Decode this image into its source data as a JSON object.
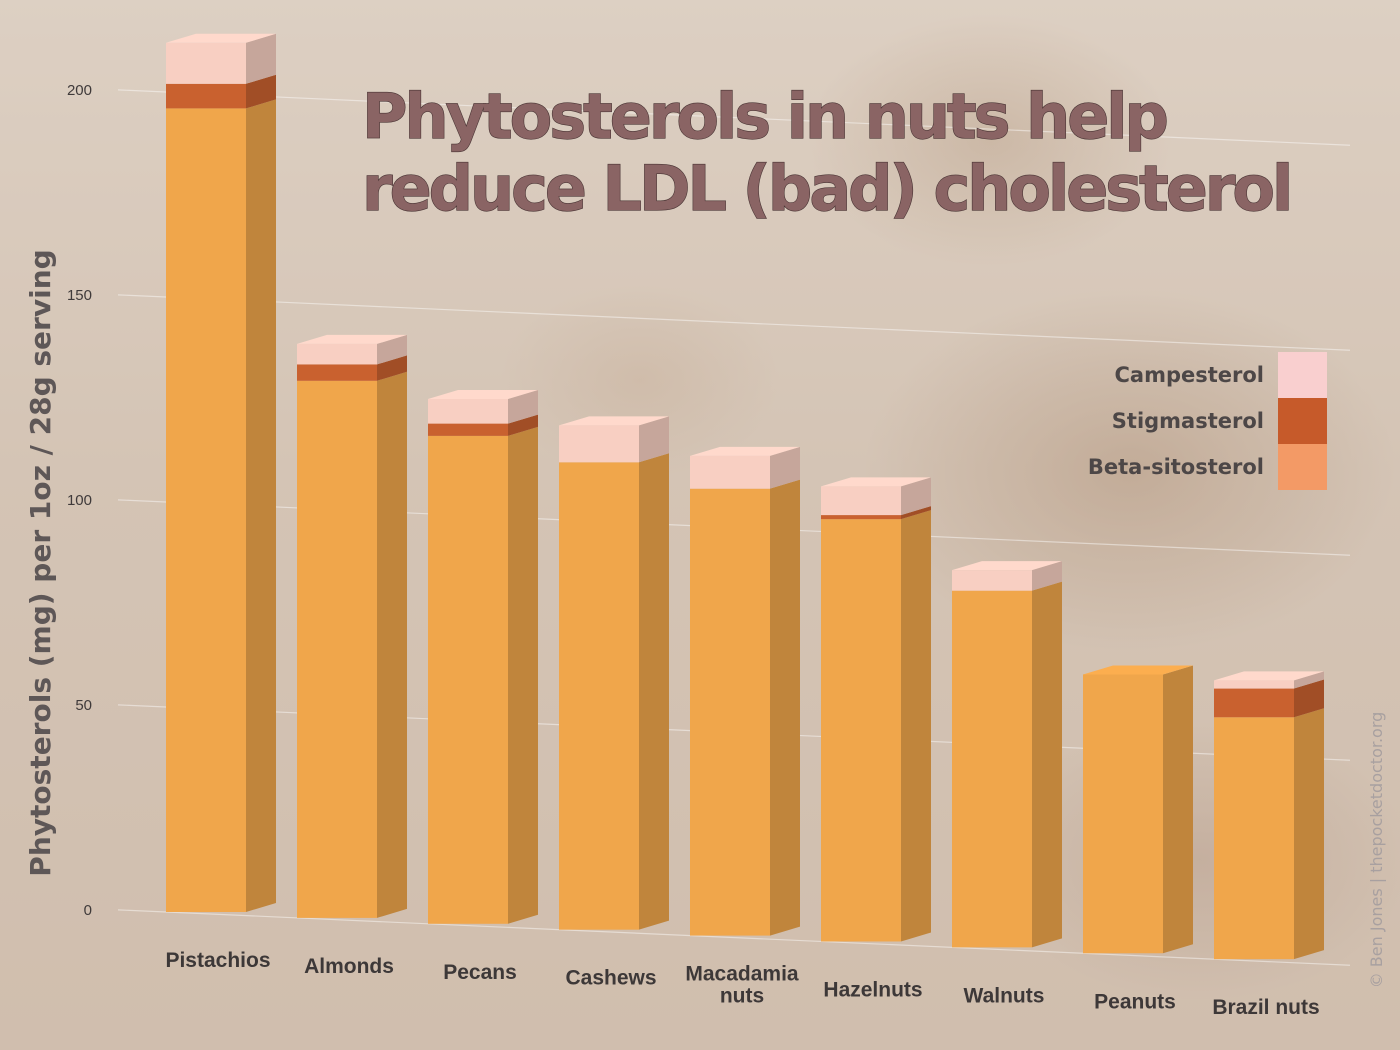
{
  "chart_data": {
    "type": "bar",
    "stacked": true,
    "title_lines": [
      "Phytosterols in nuts help",
      "reduce LDL (bad) cholesterol"
    ],
    "ylabel": "Phytosterols (mg) per 1oz / 28g serving",
    "xlabel": "",
    "ylim": [
      0,
      200
    ],
    "yticks": [
      0,
      50,
      100,
      150,
      200
    ],
    "grid": true,
    "legend_position": "right",
    "categories": [
      "Pistachios",
      "Almonds",
      "Pecans",
      "Cashews",
      "Macadamia nuts",
      "Hazelnuts",
      "Walnuts",
      "Peanuts",
      "Brazil nuts"
    ],
    "series": [
      {
        "name": "Beta-sitosterol",
        "color": "#f0a64b",
        "values": [
          196,
          131,
          119,
          114,
          109,
          103,
          87,
          68,
          59
        ]
      },
      {
        "name": "Stigmasterol",
        "color": "#c9612f",
        "values": [
          6,
          4,
          3,
          0,
          0,
          1,
          0,
          0,
          7
        ]
      },
      {
        "name": "Campesterol",
        "color": "#f8cfc2",
        "values": [
          10,
          5,
          6,
          9,
          8,
          7,
          5,
          0,
          2
        ]
      }
    ],
    "legend": [
      {
        "name": "Campesterol",
        "color": "#f9cfcf"
      },
      {
        "name": "Stigmasterol",
        "color": "#c65a2a"
      },
      {
        "name": "Beta-sitosterol",
        "color": "#f39a66"
      }
    ],
    "credit": "© Ben Jones | thepocketdoctor.org"
  }
}
